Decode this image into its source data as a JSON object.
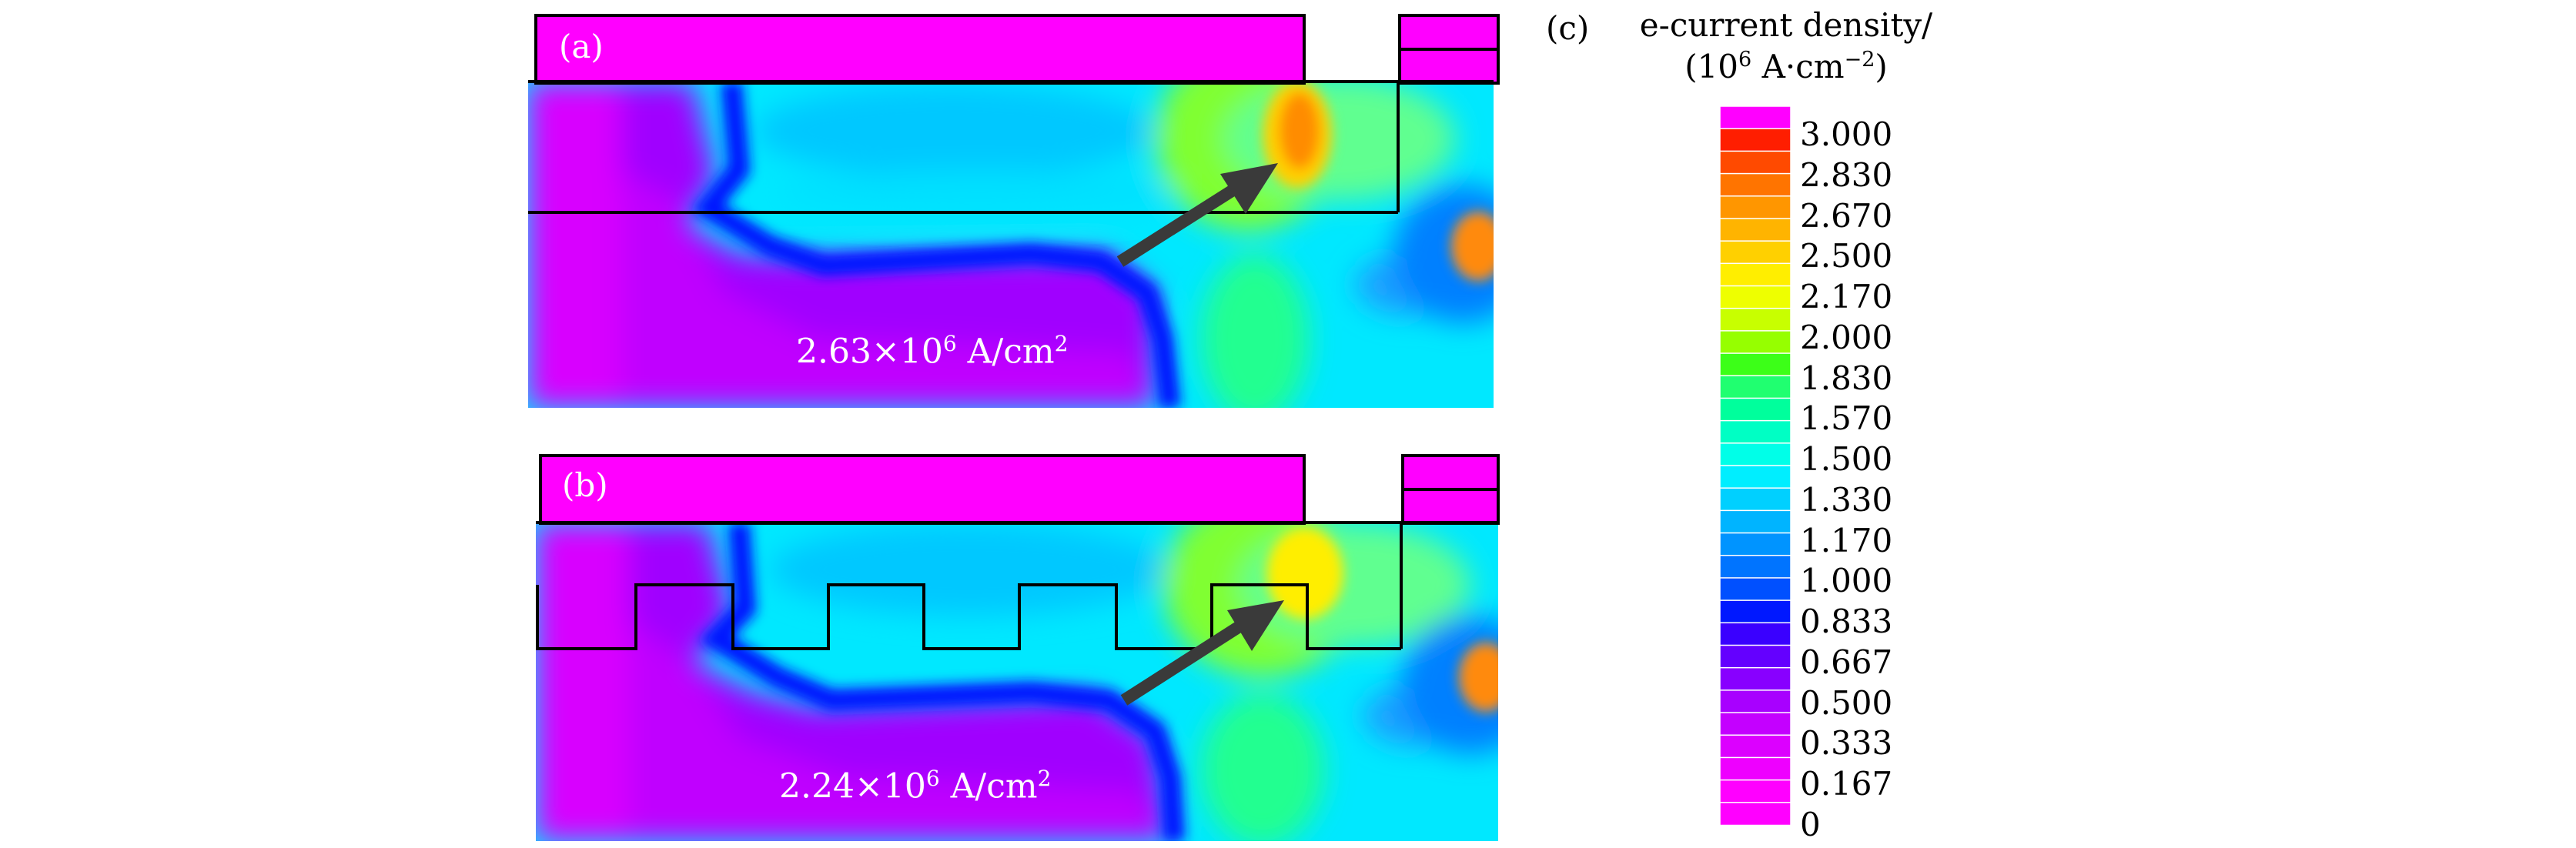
{
  "panels": {
    "a": {
      "label": "(a)",
      "value": "2.63",
      "times": "×10",
      "exp": "6",
      "unit": " A/cm",
      "unit_exp": "2"
    },
    "b": {
      "label": "(b)",
      "value": "2.24",
      "times": "×10",
      "exp": "6",
      "unit": " A/cm",
      "unit_exp": "2"
    }
  },
  "colorbar": {
    "panel_label": "(c)",
    "title_line1": "e-current density/",
    "title_line2_prefix": "(10",
    "title_line2_exp": "6",
    "title_line2_unit": " A·cm",
    "title_line2_unit_exp": "−2",
    "title_line2_suffix": ")",
    "ticks": [
      "3.000",
      "2.830",
      "2.670",
      "2.500",
      "2.170",
      "2.000",
      "1.830",
      "1.570",
      "1.500",
      "1.330",
      "1.170",
      "1.000",
      "0.833",
      "0.667",
      "0.500",
      "0.333",
      "0.167",
      "0"
    ],
    "colors": [
      "#ff00ff",
      "#ff1e00",
      "#ff4a00",
      "#ff7400",
      "#ff9600",
      "#ffb400",
      "#ffd000",
      "#ffee00",
      "#eeff00",
      "#c8ff00",
      "#96ff00",
      "#3cff18",
      "#20ff70",
      "#00ff9c",
      "#00ffc4",
      "#00ffe8",
      "#00eeff",
      "#00d0ff",
      "#00b4ff",
      "#0094ff",
      "#0074ff",
      "#0050ff",
      "#0018ff",
      "#3a00ff",
      "#6400ff",
      "#8800ff",
      "#a800ff",
      "#c400ff",
      "#dc00ff",
      "#ee00ff",
      "#ff00ff",
      "#ff00ff"
    ],
    "arrow_color": "#3a3a3a"
  }
}
